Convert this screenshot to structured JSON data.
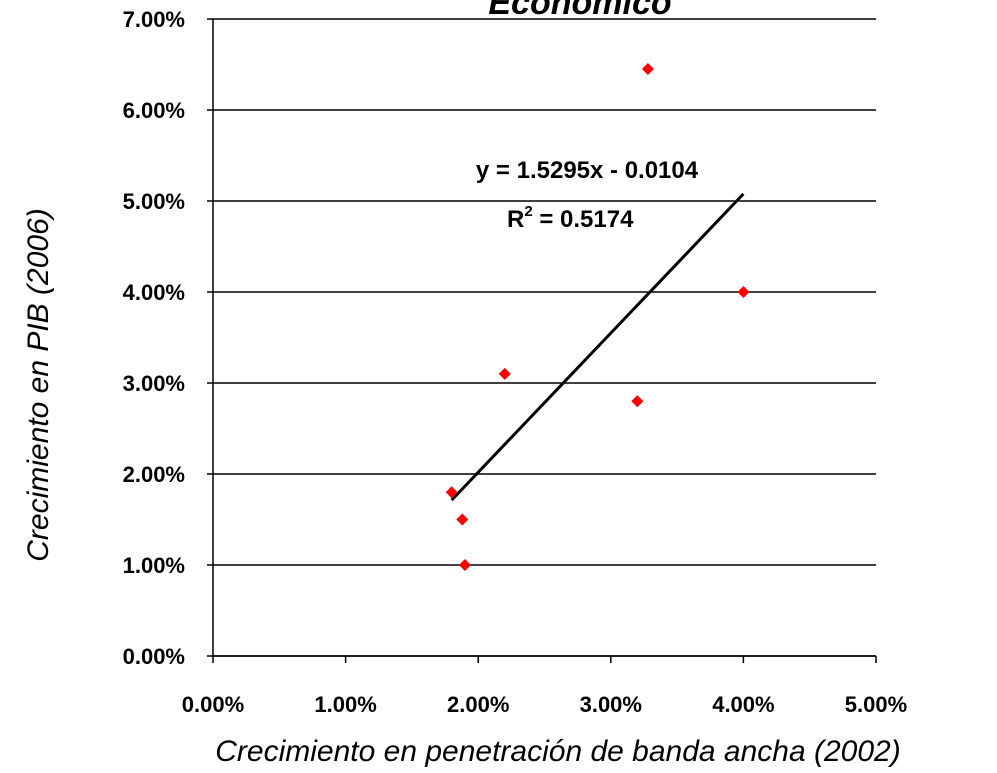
{
  "chart_data": {
    "type": "scatter",
    "title": "Económico",
    "xlabel": "Crecimiento en penetración de banda ancha (2002)",
    "ylabel": "Crecimiento en PIB (2006)",
    "xlim": [
      0.0,
      0.05
    ],
    "ylim": [
      0.0,
      0.07
    ],
    "x_ticks": [
      "0.00%",
      "1.00%",
      "2.00%",
      "3.00%",
      "4.00%",
      "5.00%"
    ],
    "y_ticks": [
      "0.00%",
      "1.00%",
      "2.00%",
      "3.00%",
      "4.00%",
      "5.00%",
      "6.00%",
      "7.00%"
    ],
    "grid": "horizontal",
    "marker_color": "#ff0000",
    "points": [
      {
        "x": 0.018,
        "y": 0.018
      },
      {
        "x": 0.0188,
        "y": 0.015
      },
      {
        "x": 0.019,
        "y": 0.01
      },
      {
        "x": 0.022,
        "y": 0.031
      },
      {
        "x": 0.032,
        "y": 0.028
      },
      {
        "x": 0.0328,
        "y": 0.0645
      },
      {
        "x": 0.04,
        "y": 0.04
      }
    ],
    "trendline": {
      "slope": 1.5295,
      "intercept": -0.0104,
      "x_range": [
        0.018,
        0.04
      ],
      "equation": "y = 1.5295x - 0.0104",
      "r2_label": "R",
      "r2_superscript": "2",
      "r2_value": " = 0.5174"
    }
  }
}
